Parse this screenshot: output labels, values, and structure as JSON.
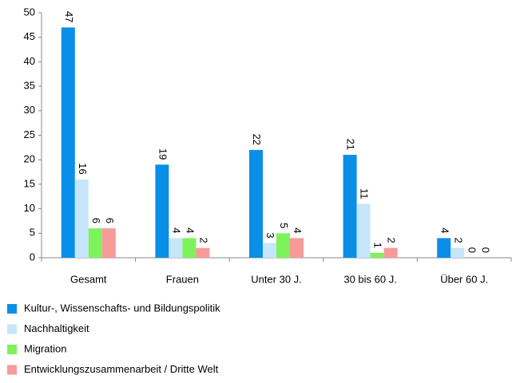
{
  "chart_data": {
    "type": "bar",
    "categories": [
      "Gesamt",
      "Frauen",
      "Unter 30 J.",
      "30 bis 60 J.",
      "Über 60 J."
    ],
    "series": [
      {
        "name": "Kultur-, Wissenschafts- und Bildungspolitik",
        "color": "#0a8ee8",
        "values": [
          47,
          19,
          22,
          21,
          4
        ]
      },
      {
        "name": "Nachhaltigkeit",
        "color": "#c6e6fb",
        "values": [
          16,
          4,
          3,
          11,
          2
        ]
      },
      {
        "name": "Migration",
        "color": "#7ef25b",
        "values": [
          6,
          4,
          5,
          1,
          0
        ]
      },
      {
        "name": "Entwicklungszusammenarbeit / Dritte Welt",
        "color": "#f79a9a",
        "values": [
          6,
          2,
          4,
          2,
          0
        ]
      }
    ],
    "ylim": [
      0,
      50
    ],
    "yticks": [
      0,
      5,
      10,
      15,
      20,
      25,
      30,
      35,
      40,
      45,
      50
    ],
    "grid": false
  }
}
